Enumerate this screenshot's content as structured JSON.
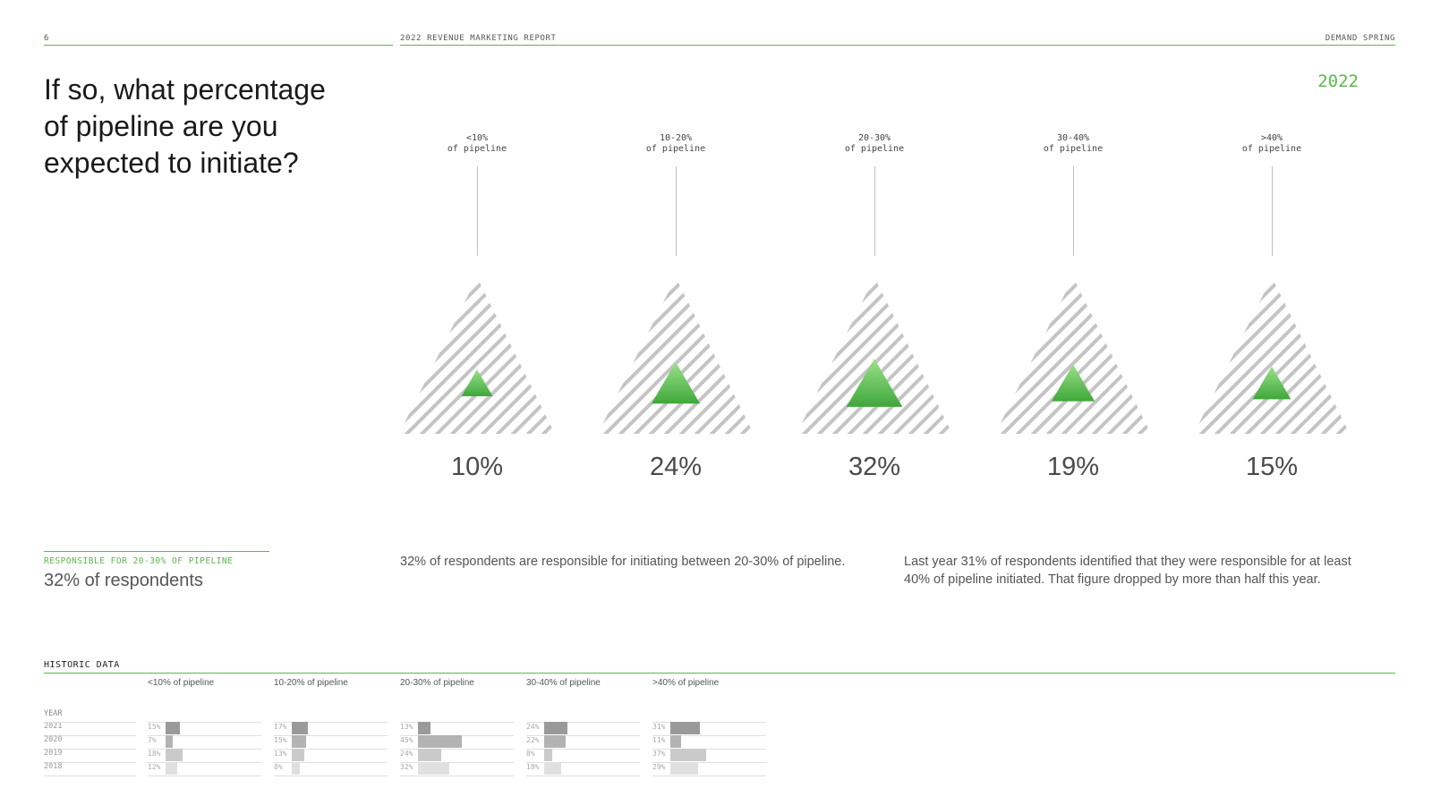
{
  "header": {
    "page_number": "6",
    "report_title": "2022 REVENUE MARKETING REPORT",
    "brand": "DEMAND SPRING"
  },
  "question": "If so, what percentage of pipeline are you expected to initiate?",
  "year": "2022",
  "chart_data": {
    "type": "bar",
    "categories": [
      "<10%\nof pipeline",
      "10-20%\nof pipeline",
      "20-30%\nof pipeline",
      "30-40%\nof pipeline",
      ">40%\nof pipeline"
    ],
    "category_top": [
      "<10%",
      "10-20%",
      "20-30%",
      "30-40%",
      ">40%"
    ],
    "category_bottom": [
      "of pipeline",
      "of pipeline",
      "of pipeline",
      "of pipeline",
      "of pipeline"
    ],
    "values": [
      10,
      24,
      32,
      19,
      15
    ],
    "value_labels": [
      "10%",
      "24%",
      "32%",
      "19%",
      "15%"
    ],
    "max_value": 100,
    "accent_color": "#5cb84a"
  },
  "callout": {
    "label": "RESPONSIBLE FOR 20-30% OF PIPELINE",
    "value": "32% of respondents"
  },
  "description_1": "32% of respondents are responsible for initiating between 20-30% of pipeline.",
  "description_2": "Last year 31% of respondents identified that they were responsible for at least 40% of pipeline initiated. That figure dropped by more than half this year.",
  "historic": {
    "title": "HISTORIC DATA",
    "year_header": "YEAR",
    "years": [
      "2021",
      "2020",
      "2019",
      "2018"
    ],
    "columns": [
      {
        "label": "<10% of pipeline",
        "values": [
          15,
          7,
          18,
          12
        ],
        "labels": [
          "15%",
          "7%",
          "18%",
          "12%"
        ]
      },
      {
        "label": "10-20% of pipeline",
        "values": [
          17,
          15,
          13,
          8
        ],
        "labels": [
          "17%",
          "15%",
          "13%",
          "8%"
        ]
      },
      {
        "label": "20-30% of pipeline",
        "values": [
          13,
          45,
          24,
          32
        ],
        "labels": [
          "13%",
          "45%",
          "24%",
          "32%"
        ]
      },
      {
        "label": "30-40% of pipeline",
        "values": [
          24,
          22,
          8,
          18
        ],
        "labels": [
          "24%",
          "22%",
          "8%",
          "18%"
        ]
      },
      {
        "label": ">40% of pipeline",
        "values": [
          31,
          11,
          37,
          29
        ],
        "labels": [
          "31%",
          "11%",
          "37%",
          "29%"
        ]
      }
    ],
    "bar_colors": [
      "#9a9a9a",
      "#b3b3b3",
      "#cacaca",
      "#e0e0e0"
    ]
  }
}
